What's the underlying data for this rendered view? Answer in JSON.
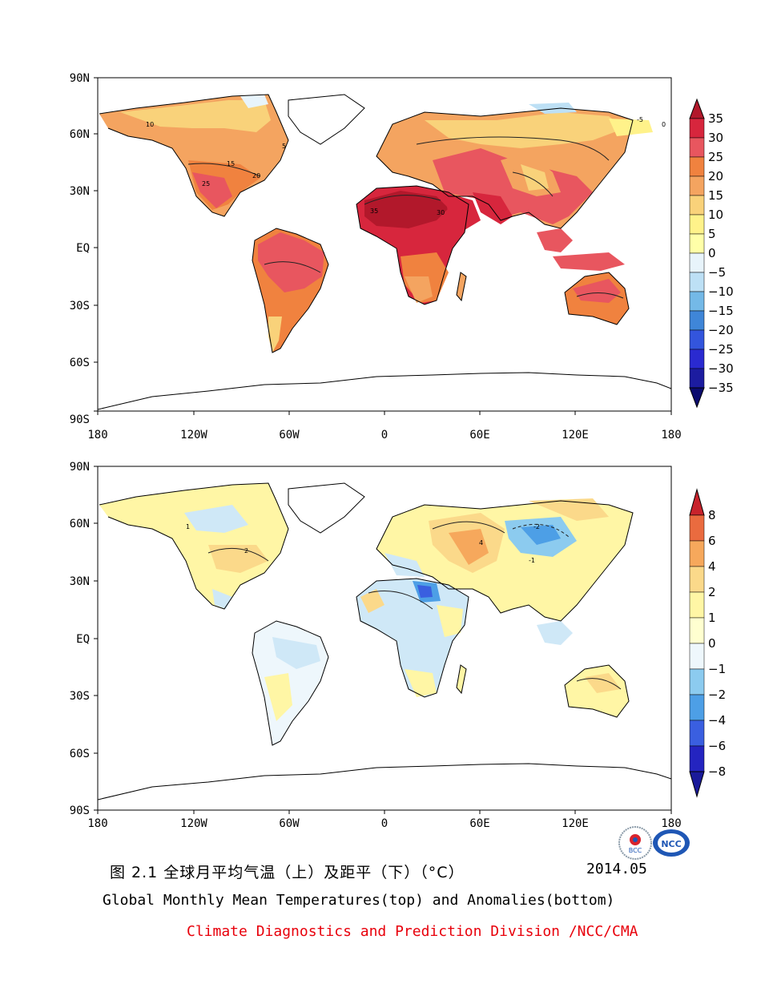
{
  "panels": [
    {
      "id": "top",
      "lat_labels": [
        "90N",
        "60N",
        "30N",
        "EQ",
        "30S",
        "60S",
        "90S"
      ],
      "lon_labels": [
        "180",
        "120W",
        "60W",
        "0",
        "60E",
        "120E",
        "180"
      ],
      "colorbar_labels": [
        "35",
        "30",
        "25",
        "20",
        "15",
        "10",
        "5",
        "0",
        "−5",
        "−10",
        "−15",
        "−20",
        "−25",
        "−30",
        "−35"
      ],
      "colorbar_colors": [
        "#b2182b",
        "#d7263d",
        "#e8565f",
        "#f0823f",
        "#f4a460",
        "#f9d27a",
        "#fff28a",
        "#e8f4fb",
        "#bde0f5",
        "#74b9e7",
        "#3f86d8",
        "#3355dd",
        "#2a2ad0",
        "#1c1ca0",
        "#0b0b6e"
      ],
      "contour_labels": [
        "35",
        "30",
        "25",
        "20",
        "15",
        "10",
        "5",
        "-5",
        "0"
      ]
    },
    {
      "id": "bottom",
      "lat_labels": [
        "90N",
        "60N",
        "30N",
        "EQ",
        "30S",
        "60S",
        "90S"
      ],
      "lon_labels": [
        "180",
        "120W",
        "60W",
        "0",
        "60E",
        "120E",
        "180"
      ],
      "colorbar_labels": [
        "8",
        "6",
        "4",
        "2",
        "1",
        "0",
        "−1",
        "−2",
        "−4",
        "−6",
        "−8"
      ],
      "colorbar_colors": [
        "#c8232c",
        "#ea6b3f",
        "#f6a85c",
        "#fbd98a",
        "#fff6a5",
        "#eef7fc",
        "#cfe8f7",
        "#8ccbef",
        "#4d9fe6",
        "#3a5fe0",
        "#1a1a9a"
      ],
      "contour_labels": [
        "4",
        "2",
        "1",
        "-1",
        "-2"
      ]
    }
  ],
  "caption": {
    "chinese": "图 2.1  全球月平均气温（上）及距平（下）（°C）",
    "date": "2014.05",
    "english": "Global Monthly Mean Temperatures(top) and Anomalies(bottom)",
    "credit": "Climate Diagnostics and Prediction Division /NCC/CMA",
    "credit_color": "#e8000b"
  },
  "logos": [
    {
      "name": "BCC",
      "text": "BCC"
    },
    {
      "name": "NCC",
      "text": "NCC"
    }
  ]
}
